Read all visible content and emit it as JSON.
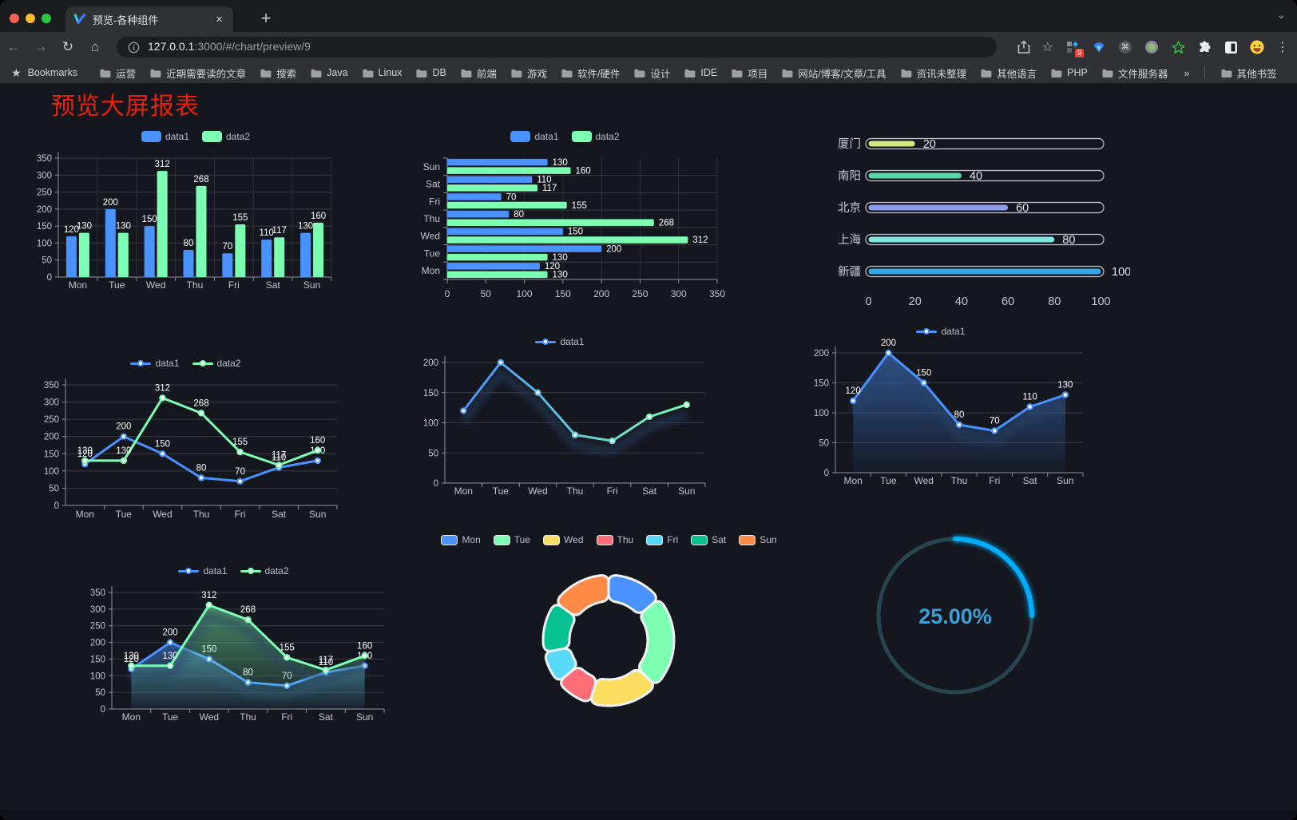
{
  "browser": {
    "tab": {
      "title": "预览-各种组件"
    },
    "icons": {
      "close_tab": "×",
      "new_tab": "+",
      "tab_search_chevron": "⌄",
      "back": "←",
      "forward": "→",
      "reload": "↻",
      "home": "⌂",
      "bookmark_star": "☆",
      "bookmarks_bar_star": "★",
      "menu_dots": "⋮",
      "command": "⌘",
      "overflow": "»"
    },
    "address_bar": {
      "host": "127.0.0.1",
      "path": ":3000/#/chart/preview/9"
    },
    "extensions_badge": "9",
    "bookmarks_bar": {
      "label": "Bookmarks",
      "folders": [
        "运营",
        "近期需要读的文章",
        "搜索",
        "Java",
        "Linux",
        "DB",
        "前端",
        "游戏",
        "软件/硬件",
        "设计",
        "IDE",
        "项目",
        "网站/博客/文章/工具",
        "资讯未整理",
        "其他语言",
        "PHP",
        "文件服务器"
      ],
      "other_bookmarks": "其他书签"
    }
  },
  "page": {
    "title": "预览大屏报表",
    "title_color": "#e8220d",
    "background": "#15171f"
  },
  "chart_data": [
    {
      "id": "c1",
      "type": "bar",
      "title": "",
      "categories": [
        "Mon",
        "Tue",
        "Wed",
        "Thu",
        "Fri",
        "Sat",
        "Sun"
      ],
      "series": [
        {
          "name": "data1",
          "color": "#4992ff",
          "values": [
            120,
            200,
            150,
            80,
            70,
            110,
            130
          ]
        },
        {
          "name": "data2",
          "color": "#7cffb2",
          "values": [
            130,
            130,
            312,
            268,
            155,
            117,
            160
          ]
        }
      ],
      "ylim": [
        0,
        350
      ],
      "yticks": [
        0,
        50,
        100,
        150,
        200,
        250,
        300,
        350
      ],
      "legend_position": "top",
      "value_labels": true,
      "grid": true
    },
    {
      "id": "c2",
      "type": "bar-horizontal",
      "categories": [
        "Mon",
        "Tue",
        "Wed",
        "Thu",
        "Fri",
        "Sat",
        "Sun"
      ],
      "series": [
        {
          "name": "data1",
          "color": "#4992ff",
          "values": [
            120,
            200,
            150,
            80,
            70,
            110,
            130
          ]
        },
        {
          "name": "data2",
          "color": "#7cffb2",
          "values": [
            130,
            130,
            312,
            268,
            155,
            117,
            160
          ]
        }
      ],
      "xlim": [
        0,
        350
      ],
      "xticks": [
        0,
        50,
        100,
        150,
        200,
        250,
        300,
        350
      ],
      "legend_position": "top",
      "value_labels": true,
      "grid": true
    },
    {
      "id": "c3",
      "type": "progress-bars",
      "max": 100,
      "ticks": [
        0,
        20,
        40,
        60,
        80,
        100
      ],
      "rows": [
        {
          "label": "厦门",
          "value": 20,
          "color": "#cfe87f"
        },
        {
          "label": "南阳",
          "value": 40,
          "color": "#58d9a3"
        },
        {
          "label": "北京",
          "value": 60,
          "color": "#8d9bf1"
        },
        {
          "label": "上海",
          "value": 80,
          "color": "#7fe6e0"
        },
        {
          "label": "新疆",
          "value": 100,
          "color": "#36a6e5"
        }
      ]
    },
    {
      "id": "c4",
      "type": "line",
      "categories": [
        "Mon",
        "Tue",
        "Wed",
        "Thu",
        "Fri",
        "Sat",
        "Sun"
      ],
      "series": [
        {
          "name": "data1",
          "color": "#4992ff",
          "values": [
            120,
            200,
            150,
            80,
            70,
            110,
            130
          ]
        },
        {
          "name": "data2",
          "color": "#7cffb2",
          "values": [
            130,
            130,
            312,
            268,
            155,
            117,
            160
          ]
        }
      ],
      "ylim": [
        0,
        350
      ],
      "yticks": [
        0,
        50,
        100,
        150,
        200,
        250,
        300,
        350
      ],
      "legend_position": "top",
      "value_labels": true
    },
    {
      "id": "c5",
      "type": "line",
      "categories": [
        "Mon",
        "Tue",
        "Wed",
        "Thu",
        "Fri",
        "Sat",
        "Sun"
      ],
      "series": [
        {
          "name": "data1",
          "gradient": [
            "#4992ff",
            "#7cffb2"
          ],
          "values": [
            120,
            200,
            150,
            80,
            70,
            110,
            130
          ]
        }
      ],
      "ylim": [
        0,
        200
      ],
      "yticks": [
        0,
        50,
        100,
        150,
        200
      ],
      "legend_position": "top",
      "value_labels": false,
      "shadow": true
    },
    {
      "id": "c6",
      "type": "area",
      "categories": [
        "Mon",
        "Tue",
        "Wed",
        "Thu",
        "Fri",
        "Sat",
        "Sun"
      ],
      "series": [
        {
          "name": "data1",
          "color": "#4992ff",
          "values": [
            120,
            200,
            150,
            80,
            70,
            110,
            130
          ]
        }
      ],
      "ylim": [
        0,
        200
      ],
      "yticks": [
        0,
        50,
        100,
        150,
        200
      ],
      "legend_position": "top",
      "value_labels": true,
      "shadow": true
    },
    {
      "id": "c7",
      "type": "area",
      "categories": [
        "Mon",
        "Tue",
        "Wed",
        "Thu",
        "Fri",
        "Sat",
        "Sun"
      ],
      "series": [
        {
          "name": "data1",
          "color": "#4992ff",
          "values": [
            120,
            200,
            150,
            80,
            70,
            110,
            130
          ]
        },
        {
          "name": "data2",
          "color": "#7cffb2",
          "values": [
            130,
            130,
            312,
            268,
            155,
            117,
            160
          ]
        }
      ],
      "ylim": [
        0,
        350
      ],
      "yticks": [
        0,
        50,
        100,
        150,
        200,
        250,
        300,
        350
      ],
      "legend_position": "top",
      "value_labels": true,
      "shadow": true
    },
    {
      "id": "c8",
      "type": "pie",
      "categories": [
        "Mon",
        "Tue",
        "Wed",
        "Thu",
        "Fri",
        "Sat",
        "Sun"
      ],
      "values": [
        120,
        200,
        150,
        80,
        70,
        110,
        130
      ],
      "colors": [
        "#4992ff",
        "#7cffb2",
        "#fddd60",
        "#ff6e76",
        "#58d9f9",
        "#05c091",
        "#ff8a45"
      ],
      "legend_position": "top",
      "donut": true
    },
    {
      "id": "c9",
      "type": "gauge",
      "value_text": "25.00%",
      "percent": 25,
      "arc_color": "#00aeff",
      "track_color": "#25454f",
      "text_color": "#3d9fd8"
    }
  ]
}
